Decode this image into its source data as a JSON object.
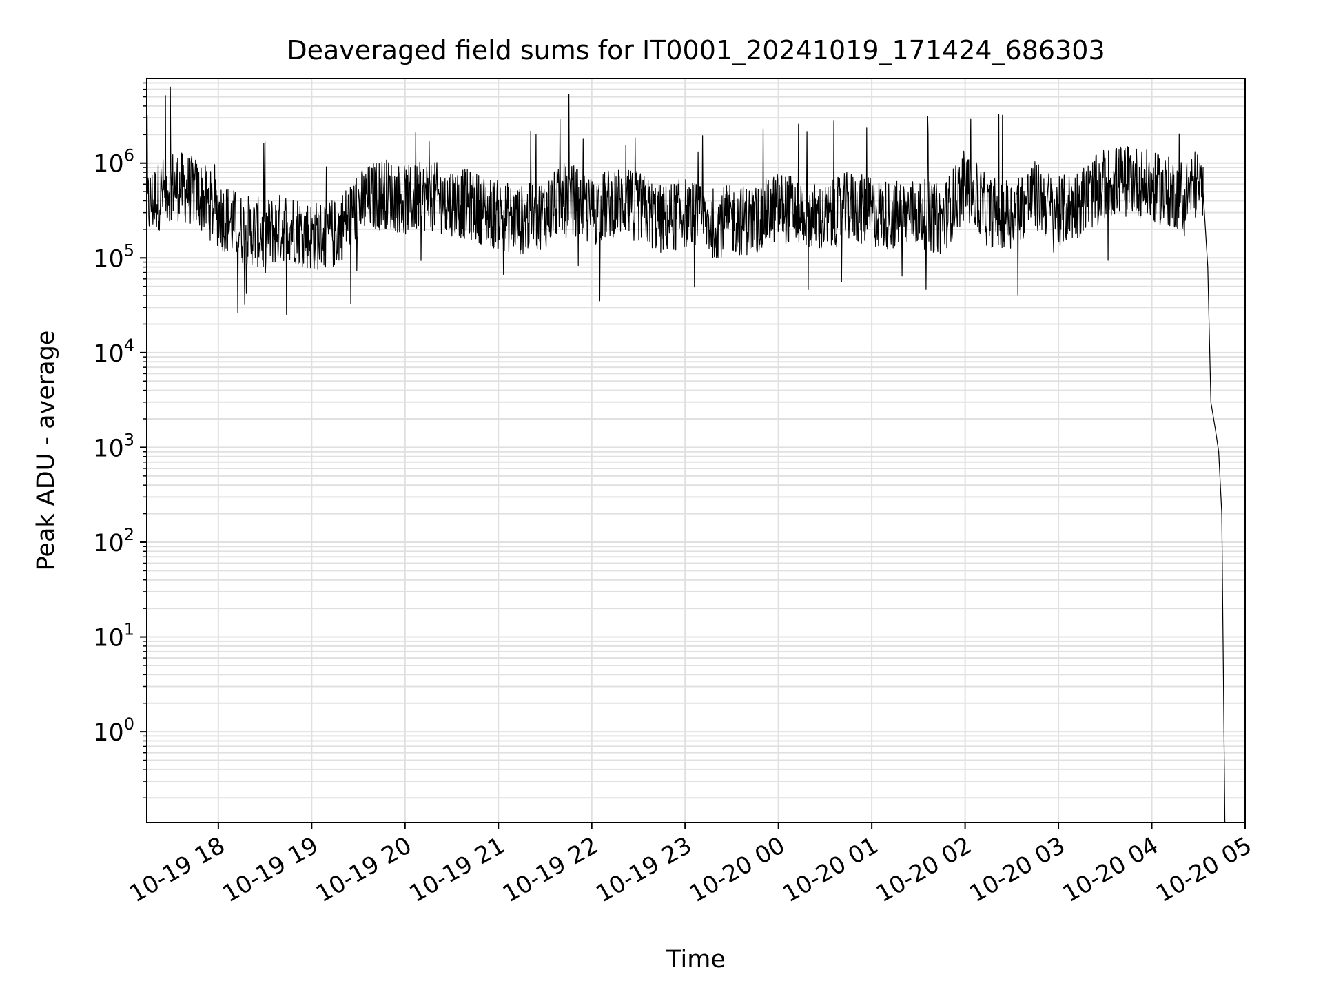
{
  "chart_data": {
    "type": "line",
    "title": "Deaveraged field sums for IT0001_20241019_171424_686303",
    "xlabel": "Time",
    "ylabel": "Peak ADU - average",
    "x_scale": "time",
    "y_scale": "log",
    "xlim": [
      "2024-10-19 17:14",
      "2024-10-20 05:00"
    ],
    "ylim": [
      0.11,
      7800000
    ],
    "x_ticks": [
      "10-19 18",
      "10-19 19",
      "10-19 20",
      "10-19 21",
      "10-19 22",
      "10-19 23",
      "10-20 00",
      "10-20 01",
      "10-20 02",
      "10-20 03",
      "10-20 04",
      "10-20 05"
    ],
    "y_ticks": [
      {
        "value": 1,
        "base": "10",
        "exp": "0"
      },
      {
        "value": 10,
        "base": "10",
        "exp": "1"
      },
      {
        "value": 100,
        "base": "10",
        "exp": "2"
      },
      {
        "value": 1000,
        "base": "10",
        "exp": "3"
      },
      {
        "value": 10000,
        "base": "10",
        "exp": "4"
      },
      {
        "value": 100000,
        "base": "10",
        "exp": "5"
      },
      {
        "value": 1000000,
        "base": "10",
        "exp": "6"
      }
    ],
    "grid": true,
    "line_color": "#000000",
    "grid_color": "#e0e0e0",
    "series": [
      {
        "x": [
          "2024-10-19 17:14",
          "2024-10-19 17:30",
          "2024-10-19 17:45",
          "2024-10-19 18:00",
          "2024-10-19 18:15",
          "2024-10-19 18:30",
          "2024-10-19 18:45",
          "2024-10-19 19:00",
          "2024-10-19 19:15",
          "2024-10-19 19:30",
          "2024-10-19 19:45",
          "2024-10-19 20:00",
          "2024-10-19 20:15",
          "2024-10-19 20:30",
          "2024-10-19 20:45",
          "2024-10-19 21:00",
          "2024-10-19 21:15",
          "2024-10-19 21:30",
          "2024-10-19 21:45",
          "2024-10-19 22:00",
          "2024-10-19 22:15",
          "2024-10-19 22:30",
          "2024-10-19 22:45",
          "2024-10-19 23:00",
          "2024-10-19 23:15",
          "2024-10-19 23:30",
          "2024-10-19 23:45",
          "2024-10-20 00:00",
          "2024-10-20 00:15",
          "2024-10-20 00:30",
          "2024-10-20 00:45",
          "2024-10-20 01:00",
          "2024-10-20 01:15",
          "2024-10-20 01:30",
          "2024-10-20 01:45",
          "2024-10-20 02:00",
          "2024-10-20 02:15",
          "2024-10-20 02:30",
          "2024-10-20 02:45",
          "2024-10-20 03:00",
          "2024-10-20 03:15",
          "2024-10-20 03:30",
          "2024-10-20 03:45",
          "2024-10-20 04:00",
          "2024-10-20 04:10",
          "2024-10-20 04:20",
          "2024-10-20 04:28",
          "2024-10-20 04:33",
          "2024-10-20 04:36",
          "2024-10-20 04:38",
          "2024-10-20 04:41",
          "2024-10-20 04:43",
          "2024-10-20 04:45",
          "2024-10-20 04:47"
        ],
        "y": [
          350000,
          600000,
          500000,
          300000,
          200000,
          180000,
          220000,
          170000,
          180000,
          350000,
          500000,
          400000,
          450000,
          400000,
          350000,
          280000,
          250000,
          300000,
          450000,
          300000,
          400000,
          350000,
          250000,
          300000,
          230000,
          250000,
          250000,
          350000,
          300000,
          250000,
          350000,
          300000,
          280000,
          300000,
          250000,
          600000,
          300000,
          300000,
          450000,
          300000,
          400000,
          600000,
          700000,
          550000,
          500000,
          450000,
          600000,
          500000,
          80000,
          3000,
          1500,
          900,
          200,
          0.11
        ]
      }
    ]
  }
}
